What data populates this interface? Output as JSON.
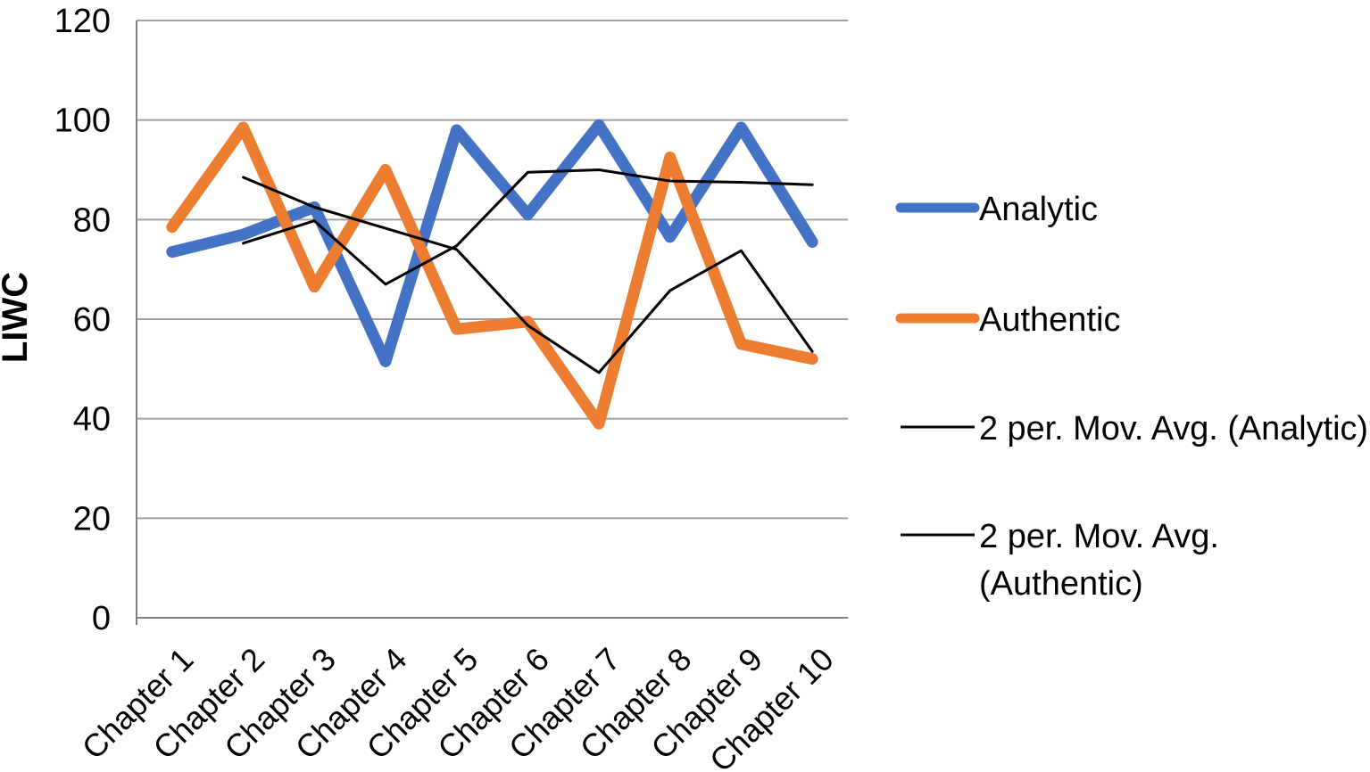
{
  "chart_data": {
    "type": "line",
    "title": "",
    "xlabel": "",
    "ylabel": "LIWC",
    "ylim": [
      0,
      120
    ],
    "ytick_step": 20,
    "yticks": [
      0,
      20,
      40,
      60,
      80,
      100,
      120
    ],
    "grid": true,
    "legend_position": "right",
    "categories": [
      "Chapter 1",
      "Chapter 2",
      "Chapter 3",
      "Chapter 4",
      "Chapter 5",
      "Chapter 6",
      "Chapter 7",
      "Chapter 8",
      "Chapter 9",
      "Chapter 10"
    ],
    "series": [
      {
        "name": "Analytic",
        "color": "#4472C4",
        "line_width": 13,
        "values": [
          73.5,
          77,
          82.5,
          51.5,
          98,
          81,
          99,
          76.5,
          98.5,
          75.5
        ]
      },
      {
        "name": "Authentic",
        "color": "#ED7D31",
        "line_width": 13,
        "values": [
          78.5,
          98.5,
          66.5,
          90,
          58,
          59.5,
          39,
          92.5,
          55,
          52
        ]
      },
      {
        "name": "2 per. Mov. Avg. (Analytic)",
        "color": "#000000",
        "line_width": 3,
        "values": [
          null,
          75.25,
          79.75,
          67,
          74.75,
          89.5,
          90,
          87.75,
          87.5,
          87
        ],
        "legend_label_lines": [
          "2 per. Mov. Avg. (Analytic)"
        ]
      },
      {
        "name": "2 per. Mov. Avg. (Authentic)",
        "color": "#000000",
        "line_width": 3,
        "values": [
          null,
          88.5,
          82.5,
          78.25,
          74,
          58.75,
          49.25,
          65.75,
          73.75,
          53.5
        ],
        "legend_label_lines": [
          "2 per. Mov. Avg.",
          "(Authentic)"
        ]
      }
    ],
    "colors": {
      "series_analytic": "#4472C4",
      "series_authentic": "#ED7D31",
      "moving_average": "#000000",
      "gridline": "#A0A0A0",
      "axis": "#808080",
      "text": "#000000",
      "background": "#FFFFFF"
    }
  }
}
